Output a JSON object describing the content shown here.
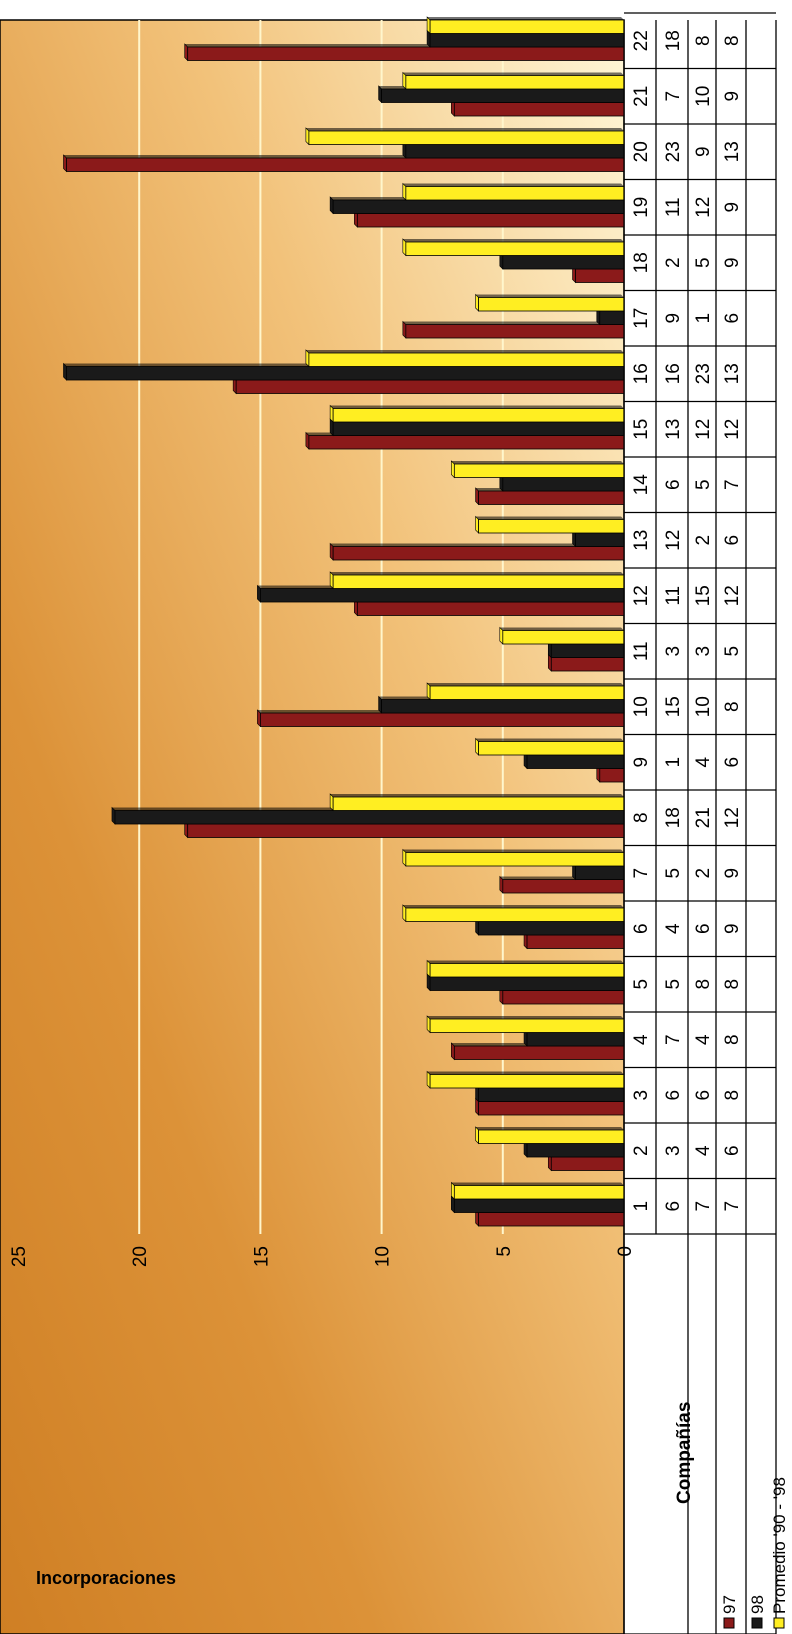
{
  "chart_data": {
    "type": "bar",
    "orientation": "rotated-90",
    "ylabel": "Incorporaciones",
    "xlabel": "Compañías",
    "ylim": [
      0,
      25
    ],
    "yticks": [
      0,
      5,
      10,
      15,
      20,
      25
    ],
    "grid": true,
    "legend": "top",
    "categories": [
      "1",
      "2",
      "3",
      "4",
      "5",
      "6",
      "7",
      "8",
      "9",
      "10",
      "11",
      "12",
      "13",
      "14",
      "15",
      "16",
      "17",
      "18",
      "19",
      "20",
      "21",
      "22"
    ],
    "series": [
      {
        "name": "97",
        "color": "#8b1a1a",
        "values": [
          6,
          3,
          6,
          7,
          5,
          4,
          5,
          18,
          1,
          15,
          3,
          11,
          12,
          6,
          13,
          16,
          9,
          2,
          11,
          23,
          7,
          18
        ]
      },
      {
        "name": "98",
        "color": "#1a1a1a",
        "values": [
          7,
          4,
          6,
          4,
          8,
          6,
          2,
          21,
          4,
          10,
          3,
          15,
          2,
          5,
          12,
          23,
          1,
          5,
          12,
          9,
          10,
          8
        ]
      },
      {
        "name": "Promedio '90 - '98",
        "color": "#ffee22",
        "values": [
          7,
          6,
          8,
          8,
          8,
          9,
          9,
          12,
          6,
          8,
          5,
          12,
          6,
          7,
          12,
          13,
          6,
          9,
          9,
          13,
          9,
          8
        ]
      }
    ],
    "legend_labels": [
      "97",
      "98",
      "Promedio '90 - '98"
    ]
  }
}
